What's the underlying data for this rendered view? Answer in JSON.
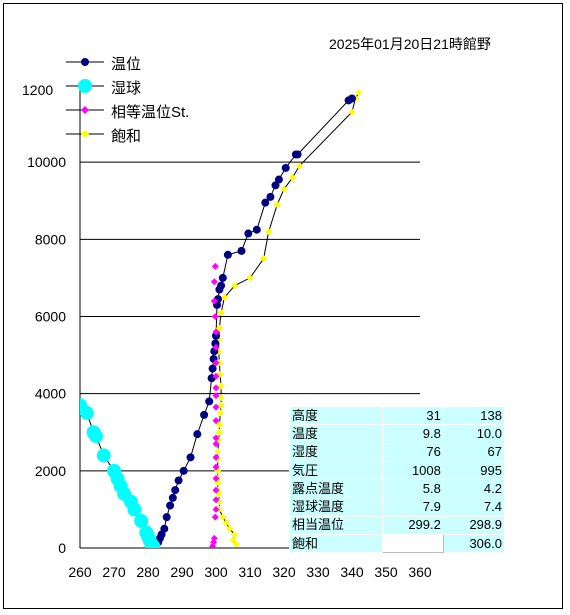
{
  "title": "2025年01月20日21時館野",
  "legend": [
    {
      "label": "温位",
      "color": "#000080",
      "marker": "circle"
    },
    {
      "label": "湿球",
      "color": "#00ffff",
      "marker": "big-circle"
    },
    {
      "label": "相等温位St.",
      "color": "#ff00ff",
      "marker": "diamond"
    },
    {
      "label": "飽和",
      "color": "#ffff00",
      "marker": "diamond"
    }
  ],
  "info_table": [
    {
      "label": "高度",
      "v1": "31",
      "v2": "138"
    },
    {
      "label": "温度",
      "v1": "9.8",
      "v2": "10.0"
    },
    {
      "label": "湿度",
      "v1": "76",
      "v2": "67"
    },
    {
      "label": "気圧",
      "v1": "1008",
      "v2": "995"
    },
    {
      "label": "露点温度",
      "v1": "5.8",
      "v2": "4.2"
    },
    {
      "label": "湿球温度",
      "v1": "7.9",
      "v2": "7.4"
    },
    {
      "label": "相当温位",
      "v1": "299.2",
      "v2": "298.9"
    },
    {
      "label": "飽和",
      "v1": "",
      "v2": "306.0"
    }
  ],
  "chart_data": {
    "type": "scatter",
    "title": "2025年01月20日21時館野",
    "xlabel": "",
    "ylabel": "",
    "xlim": [
      260,
      360
    ],
    "ylim": [
      0,
      12000
    ],
    "x_ticks": [
      260,
      270,
      280,
      290,
      300,
      310,
      320,
      330,
      340,
      350,
      360
    ],
    "y_ticks": [
      0,
      2000,
      4000,
      6000,
      8000,
      10000
    ],
    "y_tick_labels": [
      "0",
      "2000",
      "4000",
      "6000",
      "8000",
      "10000"
    ],
    "y_top_label": "1200",
    "grid": "horizontal",
    "series": [
      {
        "name": "温位",
        "color": "#000080",
        "marker": "circle",
        "line": true,
        "x": [
          283.0,
          283.5,
          284.0,
          284.8,
          285.5,
          286.5,
          287.3,
          288.0,
          289.0,
          290.5,
          292.5,
          294.5,
          296.5,
          298.0,
          298.7,
          299.0,
          299.3,
          299.5,
          299.8,
          300.0,
          300.3,
          300.6,
          301.0,
          301.5,
          302.0,
          303.5,
          307.5,
          309.5,
          312.0,
          314.5,
          316.0,
          317.5,
          318.5,
          320.5,
          323.5,
          324.0,
          339.0,
          340.0
        ],
        "y": [
          150,
          250,
          350,
          500,
          800,
          1100,
          1300,
          1500,
          1750,
          2000,
          2350,
          2950,
          3450,
          3800,
          4400,
          4650,
          4900,
          5100,
          5300,
          5500,
          6300,
          6450,
          6700,
          6800,
          7000,
          7600,
          7700,
          8150,
          8250,
          8950,
          9100,
          9400,
          9550,
          9850,
          10200,
          10200,
          11600,
          11650
        ]
      },
      {
        "name": "湿球",
        "color": "#00ffff",
        "marker": "big-circle",
        "line": true,
        "x": [
          260.0,
          262.0,
          264.0,
          264.7,
          267.0,
          270.0,
          271.0,
          272.0,
          273.0,
          275.0,
          276.0,
          278.0,
          279.5,
          280.0,
          280.5,
          281.0,
          281.5
        ],
        "y": [
          3700,
          3500,
          3000,
          2900,
          2400,
          2000,
          1800,
          1600,
          1400,
          1200,
          1000,
          700,
          400,
          300,
          200,
          100,
          50
        ]
      },
      {
        "name": "相等温位St.",
        "color": "#ff00ff",
        "marker": "diamond",
        "line": false,
        "x": [
          299.0,
          299.3,
          299.5,
          299.8,
          300.0,
          300.0,
          300.0,
          300.0,
          300.0,
          300.0,
          300.0,
          300.0,
          300.0,
          300.0,
          300.0,
          300.0,
          300.0,
          300.0,
          300.0,
          300.0,
          299.8,
          299.5,
          299.5,
          299.8
        ],
        "y": [
          50,
          150,
          250,
          800,
          1000,
          1250,
          1500,
          1800,
          2100,
          2350,
          2700,
          2850,
          3300,
          3650,
          3950,
          4150,
          4450,
          4800,
          5200,
          5600,
          6000,
          6400,
          6900,
          7300
        ]
      },
      {
        "name": "飽和",
        "color": "#ffff00",
        "marker": "diamond",
        "line": true,
        "x": [
          306.0,
          305.0,
          305.5,
          304.0,
          303.0,
          302.0,
          301.0,
          301.0,
          300.8,
          300.5,
          300.5,
          300.5,
          300.5,
          300.5,
          300.5,
          300.8,
          301.0,
          301.0,
          301.3,
          301.5,
          301.5,
          301.5,
          301.2,
          301.0,
          300.8,
          300.8,
          301.0,
          301.5,
          302.5,
          305.5,
          310.0,
          314.0,
          315.5,
          318.0,
          320.0,
          322.5,
          324.5,
          340.0,
          341.0,
          342.0
        ],
        "y": [
          100,
          200,
          350,
          500,
          650,
          800,
          1000,
          1200,
          1400,
          1500,
          1700,
          1800,
          2000,
          2300,
          2500,
          2800,
          3000,
          3200,
          3500,
          3700,
          3900,
          4200,
          4500,
          4800,
          5100,
          5400,
          5700,
          6100,
          6500,
          6800,
          7000,
          7500,
          8200,
          8900,
          9300,
          9600,
          9900,
          11300,
          11650,
          11800
        ]
      }
    ]
  }
}
